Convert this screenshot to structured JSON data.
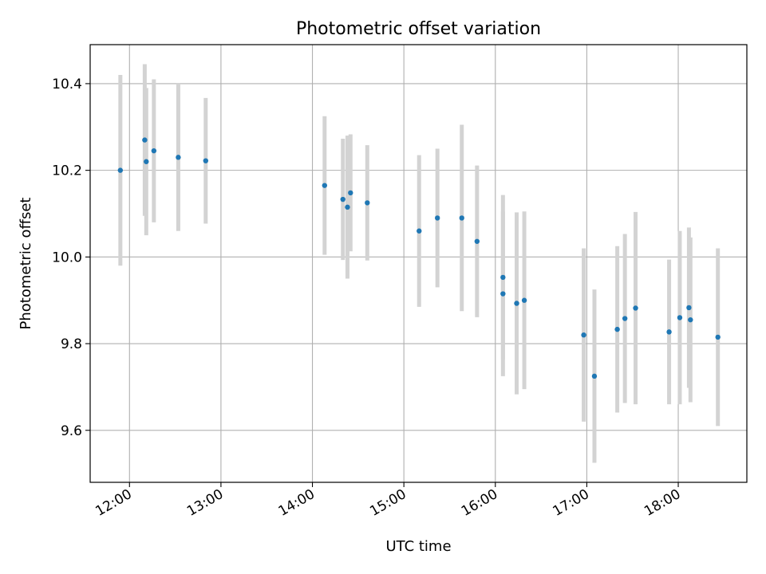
{
  "chart_data": {
    "type": "scatter",
    "title": "Photometric offset variation",
    "xlabel": "UTC time",
    "ylabel": "Photometric offset",
    "x_tick_labels": [
      "12:00",
      "13:00",
      "14:00",
      "15:00",
      "16:00",
      "17:00",
      "18:00"
    ],
    "x_tick_hours": [
      12,
      13,
      14,
      15,
      16,
      17,
      18
    ],
    "y_tick_labels": [
      "9.6",
      "9.8",
      "10.0",
      "10.2",
      "10.4"
    ],
    "y_tick_values": [
      9.6,
      9.8,
      10.0,
      10.2,
      10.4
    ],
    "xlim": [
      11.57,
      18.75
    ],
    "ylim": [
      9.48,
      10.49
    ],
    "grid": true,
    "point_color": "#1f77b4",
    "errorbar_color": "#d3d3d3",
    "points": [
      {
        "x": "11:54",
        "y": 10.2,
        "err": 0.22
      },
      {
        "x": "12:10",
        "y": 10.27,
        "err": 0.175
      },
      {
        "x": "12:11",
        "y": 10.22,
        "err": 0.17
      },
      {
        "x": "12:16",
        "y": 10.245,
        "err": 0.165
      },
      {
        "x": "12:32",
        "y": 10.23,
        "err": 0.17
      },
      {
        "x": "12:50",
        "y": 10.222,
        "err": 0.145
      },
      {
        "x": "14:08",
        "y": 10.165,
        "err": 0.16
      },
      {
        "x": "14:20",
        "y": 10.133,
        "err": 0.14
      },
      {
        "x": "14:23",
        "y": 10.115,
        "err": 0.165
      },
      {
        "x": "14:25",
        "y": 10.148,
        "err": 0.135
      },
      {
        "x": "14:36",
        "y": 10.125,
        "err": 0.133
      },
      {
        "x": "15:10",
        "y": 10.06,
        "err": 0.175
      },
      {
        "x": "15:22",
        "y": 10.09,
        "err": 0.16
      },
      {
        "x": "15:38",
        "y": 10.09,
        "err": 0.215
      },
      {
        "x": "15:48",
        "y": 10.036,
        "err": 0.175
      },
      {
        "x": "16:05",
        "y": 9.953,
        "err": 0.19
      },
      {
        "x": "16:05",
        "y": 9.915,
        "err": 0.19
      },
      {
        "x": "16:14",
        "y": 9.893,
        "err": 0.21
      },
      {
        "x": "16:19",
        "y": 9.9,
        "err": 0.205
      },
      {
        "x": "16:58",
        "y": 9.82,
        "err": 0.2
      },
      {
        "x": "17:05",
        "y": 9.725,
        "err": 0.2
      },
      {
        "x": "17:20",
        "y": 9.833,
        "err": 0.192
      },
      {
        "x": "17:25",
        "y": 9.858,
        "err": 0.195
      },
      {
        "x": "17:32",
        "y": 9.882,
        "err": 0.222
      },
      {
        "x": "17:54",
        "y": 9.827,
        "err": 0.167
      },
      {
        "x": "18:01",
        "y": 9.86,
        "err": 0.2
      },
      {
        "x": "18:07",
        "y": 9.883,
        "err": 0.185
      },
      {
        "x": "18:08",
        "y": 9.855,
        "err": 0.19
      },
      {
        "x": "18:26",
        "y": 9.815,
        "err": 0.205
      }
    ]
  }
}
